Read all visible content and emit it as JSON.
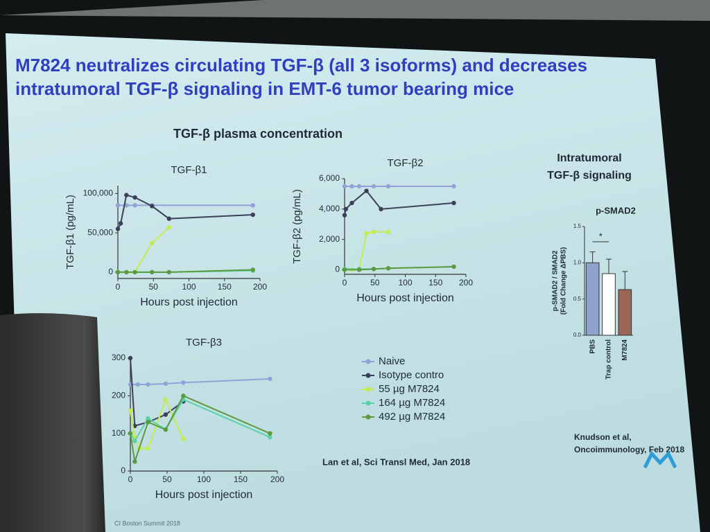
{
  "title_lines": [
    "M7824 neutralizes circulating TGF-β (all 3 isoforms) and decreases",
    "intratumoral TGF-β signaling in EMT-6 tumor bearing mice"
  ],
  "section_title": "TGF-β plasma concentration",
  "right_title_lines": [
    "Intratumoral",
    "TGF-β signaling"
  ],
  "citation_left": "Lan et al, Sci Transl Med, Jan 2018",
  "citation_right_lines": [
    "Knudson et al,",
    "Oncoimmunology, Feb 2018"
  ],
  "footer": "CI Boston Summit 2018",
  "legend": [
    {
      "name": "Naive",
      "color": "#93a2d6"
    },
    {
      "name": "Isotype contro",
      "color": "#3b3f5a"
    },
    {
      "name": "55 µg M7824",
      "color": "#c4ec4e"
    },
    {
      "name": "164 µg M7824",
      "color": "#5cd0a6"
    },
    {
      "name": "492 µg M7824",
      "color": "#5b9a3e"
    }
  ],
  "chart_data": [
    {
      "type": "line",
      "title": "TGF-β1",
      "x_label": "Hours post injection",
      "y_label": "TGF-β1 (pg/mL)",
      "xlim": [
        0,
        200
      ],
      "xticks": [
        0,
        50,
        100,
        150,
        200
      ],
      "ylim": [
        -8000,
        110000
      ],
      "yticks": [
        0,
        {
          "value": 50000,
          "label": "50,000"
        },
        {
          "value": 100000,
          "label": "100,000"
        }
      ],
      "series": [
        {
          "x": [
            0,
            12,
            24,
            48,
            190
          ],
          "values": [
            85000,
            85000,
            85000,
            85000,
            85000
          ]
        },
        {
          "x": [
            0,
            4,
            12,
            24,
            48,
            72,
            190
          ],
          "values": [
            55000,
            62000,
            98000,
            95000,
            84000,
            68000,
            73000
          ]
        },
        {
          "x": [
            0,
            12,
            24,
            48,
            72
          ],
          "values": [
            0,
            0,
            0,
            37000,
            57000
          ]
        },
        {
          "x": [
            0,
            24,
            48,
            72,
            190
          ],
          "values": [
            0,
            0,
            0,
            0,
            2000
          ]
        },
        {
          "x": [
            0,
            12,
            24,
            48,
            72,
            190
          ],
          "values": [
            0,
            0,
            0,
            0,
            0,
            3000
          ]
        }
      ]
    },
    {
      "type": "line",
      "title": "TGF-β2",
      "x_label": "Hours post injection",
      "y_label": "TGF-β2 (pg/mL)",
      "xlim": [
        0,
        200
      ],
      "xticks": [
        0,
        50,
        100,
        150,
        200
      ],
      "ylim": [
        -300,
        6000
      ],
      "yticks": [
        0,
        {
          "value": 2000,
          "label": "2,000"
        },
        {
          "value": 4000,
          "label": "4,000"
        },
        {
          "value": 6000,
          "label": "6,000"
        }
      ],
      "series": [
        {
          "x": [
            0,
            12,
            24,
            48,
            72,
            180
          ],
          "values": [
            5500,
            5500,
            5500,
            5500,
            5500,
            5500
          ]
        },
        {
          "x": [
            0,
            2,
            12,
            36,
            60,
            180
          ],
          "values": [
            3600,
            4000,
            4400,
            5200,
            4000,
            4400
          ]
        },
        {
          "x": [
            0,
            12,
            24,
            36,
            48,
            72
          ],
          "values": [
            0,
            0,
            0,
            2400,
            2500,
            2500
          ]
        },
        {
          "x": [
            0,
            24,
            48,
            72,
            180
          ],
          "values": [
            50,
            50,
            50,
            100,
            200
          ]
        },
        {
          "x": [
            0,
            24,
            48,
            72,
            180
          ],
          "values": [
            0,
            0,
            50,
            100,
            200
          ]
        }
      ]
    },
    {
      "type": "line",
      "title": "TGF-β3",
      "x_label": "Hours post injection",
      "xlim": [
        0,
        200
      ],
      "xticks": [
        0,
        50,
        100,
        150,
        200
      ],
      "ylim": [
        0,
        300
      ],
      "yticks": [
        0,
        100,
        200,
        300
      ],
      "series": [
        {
          "x": [
            0,
            10,
            24,
            48,
            72,
            190
          ],
          "values": [
            230,
            230,
            230,
            232,
            235,
            245
          ]
        },
        {
          "x": [
            0,
            6,
            24,
            48,
            72
          ],
          "values": [
            300,
            120,
            130,
            150,
            185
          ]
        },
        {
          "x": [
            0,
            6,
            12,
            24,
            48,
            72
          ],
          "values": [
            160,
            90,
            60,
            60,
            190,
            85
          ]
        },
        {
          "x": [
            0,
            6,
            24,
            48,
            72,
            190
          ],
          "values": [
            100,
            80,
            140,
            110,
            190,
            90
          ]
        },
        {
          "x": [
            0,
            6,
            24,
            48,
            72,
            190
          ],
          "values": [
            100,
            25,
            130,
            110,
            200,
            100
          ]
        }
      ]
    },
    {
      "type": "bar",
      "title": "p-SMAD2",
      "y_label_lines": [
        "p-SMAD2 / SMAD2",
        "(Fold Change ΔPBS)"
      ],
      "categories": [
        "PBS",
        "Trap control",
        "M7824"
      ],
      "values": [
        1.0,
        0.85,
        0.63
      ],
      "errors": [
        0.15,
        0.2,
        0.25
      ],
      "colors": [
        "#8ea2cc",
        "#ffffff",
        "#9a6656"
      ],
      "ylim": [
        0,
        1.5
      ],
      "yticks": [
        {
          "value": 0,
          "label": "0.0"
        },
        0.5,
        {
          "value": 1,
          "label": "1.0"
        },
        1.5
      ],
      "annotation": "*"
    }
  ]
}
